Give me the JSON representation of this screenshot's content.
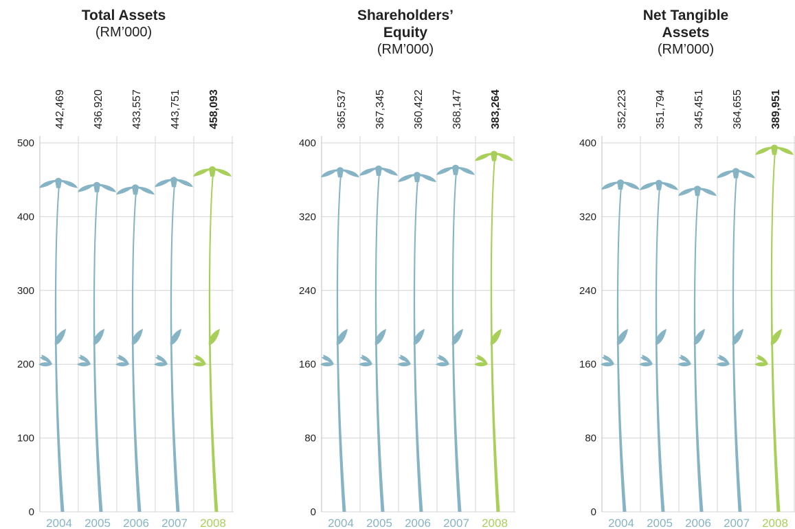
{
  "colors": {
    "stem": "#87b4c4",
    "highlight": "#a8cf5a",
    "grid": "#d4d4d4",
    "axis": "#bdbdbd",
    "text": "#222222"
  },
  "chart_data": [
    {
      "type": "bar",
      "title": "Total Assets",
      "subtitle": "(RM’000)",
      "categories": [
        "2004",
        "2005",
        "2006",
        "2007",
        "2008"
      ],
      "values": [
        442469,
        436920,
        433557,
        443751,
        458093
      ],
      "value_labels": [
        "442,469",
        "436,920",
        "433,557",
        "443,751",
        "458,093"
      ],
      "ylim": [
        0,
        500
      ],
      "yticks": [
        0,
        100,
        200,
        300,
        400,
        500
      ],
      "ytick_labels": [
        "0",
        "100",
        "200",
        "300",
        "400",
        "500"
      ],
      "highlight_index": 4
    },
    {
      "type": "bar",
      "title": "Shareholders’\nEquity",
      "subtitle": "(RM’000)",
      "categories": [
        "2004",
        "2005",
        "2006",
        "2007",
        "2008"
      ],
      "values": [
        365537,
        367345,
        360422,
        368147,
        383264
      ],
      "value_labels": [
        "365,537",
        "367,345",
        "360,422",
        "368,147",
        "383,264"
      ],
      "ylim": [
        0,
        400
      ],
      "yticks": [
        0,
        80,
        160,
        240,
        320,
        400
      ],
      "ytick_labels": [
        "0",
        "80",
        "160",
        "240",
        "320",
        "400"
      ],
      "highlight_index": 4
    },
    {
      "type": "bar",
      "title": "Net Tangible\nAssets",
      "subtitle": "(RM’000)",
      "categories": [
        "2004",
        "2005",
        "2006",
        "2007",
        "2008"
      ],
      "values": [
        352223,
        351794,
        345451,
        364655,
        389951
      ],
      "value_labels": [
        "352,223",
        "351,794",
        "345,451",
        "364,655",
        "389,951"
      ],
      "ylim": [
        0,
        400
      ],
      "yticks": [
        0,
        80,
        160,
        240,
        320,
        400
      ],
      "ytick_labels": [
        "0",
        "80",
        "160",
        "240",
        "320",
        "400"
      ],
      "highlight_index": 4
    }
  ]
}
